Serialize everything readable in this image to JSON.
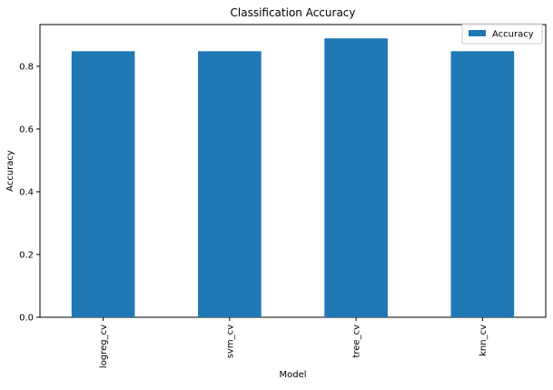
{
  "chart_data": {
    "type": "bar",
    "title": "Classification Accuracy",
    "xlabel": "Model",
    "ylabel": "Accuracy",
    "categories": [
      "logreg_cv",
      "svm_cv",
      "tree_cv",
      "knn_cv"
    ],
    "series": [
      {
        "name": "Accuracy",
        "values": [
          0.848,
          0.848,
          0.889,
          0.848
        ],
        "color": "#1f77b4"
      }
    ],
    "ylim": [
      0,
      0.933
    ],
    "yticks": [
      0.0,
      0.2,
      0.4,
      0.6,
      0.8
    ],
    "ytick_labels": [
      "0.0",
      "0.2",
      "0.4",
      "0.6",
      "0.8"
    ],
    "grid": false,
    "legend_position": "top-right"
  }
}
